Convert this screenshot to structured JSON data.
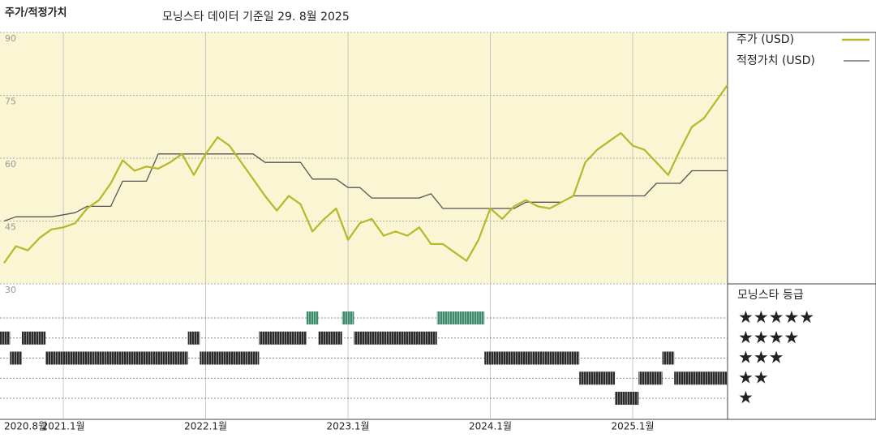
{
  "chart_data": {
    "type": "line",
    "title": "주가/적정가치",
    "subtitle": "모닝스타 데이터 기준일 29. 8월 2025",
    "categories": [
      "2020.8월",
      null,
      null,
      null,
      null,
      "2021.1월",
      null,
      null,
      null,
      null,
      null,
      null,
      null,
      null,
      null,
      null,
      null,
      "2022.1월",
      null,
      null,
      null,
      null,
      null,
      null,
      null,
      null,
      null,
      null,
      null,
      "2023.1월",
      null,
      null,
      null,
      null,
      null,
      null,
      null,
      null,
      null,
      null,
      null,
      "2024.1월",
      null,
      null,
      null,
      null,
      null,
      null,
      null,
      null,
      null,
      null,
      null,
      "2025.1월",
      null,
      null,
      null,
      null,
      null,
      null,
      null,
      null
    ],
    "series": [
      {
        "name": "주가 (USD)",
        "color": "#b5b82a",
        "values": [
          35,
          39,
          38,
          41,
          43,
          43.5,
          44.5,
          48,
          50,
          54,
          59.5,
          57,
          58,
          57.5,
          59,
          61,
          56,
          61,
          65,
          63,
          59,
          55,
          51,
          47.5,
          51,
          49,
          42.5,
          45.5,
          48,
          40.5,
          44.5,
          45.5,
          41.5,
          42.5,
          41.5,
          43.5,
          39.5,
          39.5,
          37.5,
          35.5,
          40.5,
          48,
          45.5,
          48.5,
          50,
          48.5,
          48,
          49.5,
          51,
          59,
          62,
          64,
          66,
          63,
          62,
          59,
          56,
          62,
          67.5,
          69.5,
          73.5,
          77.5
        ]
      },
      {
        "name": "적정가치 (USD)",
        "color": "#555555",
        "values": [
          45,
          46,
          46,
          46,
          46,
          46.5,
          47,
          48.5,
          48.5,
          48.5,
          54.5,
          54.5,
          54.5,
          61,
          61,
          61,
          61,
          61,
          61,
          61,
          61,
          61,
          59,
          59,
          59,
          59,
          55,
          55,
          55,
          53,
          53,
          50.5,
          50.5,
          50.5,
          50.5,
          50.5,
          51.5,
          48,
          48,
          48,
          48,
          48,
          48,
          48,
          49.5,
          49.5,
          49.5,
          49.5,
          51,
          51,
          51,
          51,
          51,
          51,
          51,
          54,
          54,
          54,
          57,
          57,
          57,
          57
        ]
      }
    ],
    "rating": {
      "name": "모닝스타 등급",
      "color": "#2a2a2a",
      "top_color": "#3d8a6b",
      "labels": [
        "★",
        "★★",
        "★★★",
        "★★★★",
        "★★★★★"
      ],
      "values": [
        4,
        3,
        4,
        4,
        3,
        3,
        3,
        3,
        3,
        3,
        3,
        3,
        3,
        3,
        3,
        3,
        4,
        3,
        3,
        3,
        3,
        3,
        4,
        4,
        4,
        4,
        5,
        4,
        4,
        5,
        4,
        4,
        4,
        4,
        4,
        4,
        4,
        5,
        5,
        5,
        5,
        3,
        3,
        3,
        3,
        3,
        3,
        3,
        3,
        2,
        2,
        2,
        1,
        1,
        2,
        2,
        3,
        2,
        2,
        2,
        2,
        2
      ]
    },
    "ylim": [
      30,
      90
    ],
    "yticks": [
      30,
      45,
      60,
      75,
      90
    ],
    "grid": true,
    "plot_background": "#faf5d2"
  }
}
